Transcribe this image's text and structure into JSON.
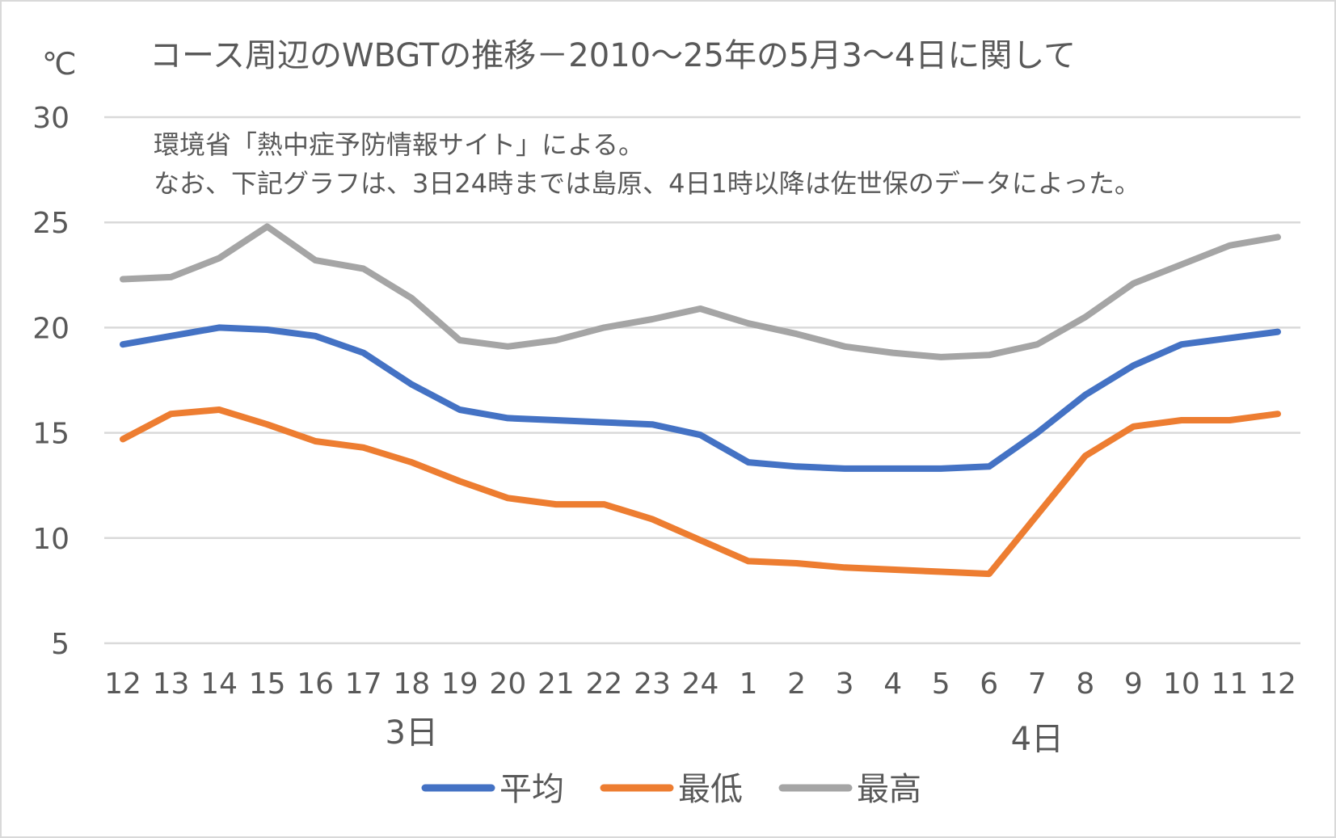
{
  "chart_data": {
    "type": "line",
    "title": "コース周辺のWBGTの推移－2010～25年の5月3～4日に関して",
    "ylabel": "℃",
    "annotation": [
      "環境省「熱中症予防情報サイト」による。",
      "なお、下記グラフは、3日24時までは島原、4日1時以降は佐世保のデータによった。"
    ],
    "categories": [
      "12",
      "13",
      "14",
      "15",
      "16",
      "17",
      "18",
      "19",
      "20",
      "21",
      "22",
      "23",
      "24",
      "1",
      "2",
      "3",
      "4",
      "5",
      "6",
      "7",
      "8",
      "9",
      "10",
      "11",
      "12"
    ],
    "group_labels": [
      {
        "label": "3日",
        "category_index": 6
      },
      {
        "label": "4日",
        "category_index": 19
      }
    ],
    "ylim": [
      5,
      30
    ],
    "yticks": [
      5,
      10,
      15,
      20,
      25,
      30
    ],
    "grid": true,
    "legend": "bottom",
    "series": [
      {
        "name": "平均",
        "color": "#4472C4",
        "values": [
          19.2,
          19.6,
          20.0,
          19.9,
          19.6,
          18.8,
          17.3,
          16.1,
          15.7,
          15.6,
          15.5,
          15.4,
          14.9,
          13.6,
          13.4,
          13.3,
          13.3,
          13.3,
          13.4,
          15.0,
          16.8,
          18.2,
          19.2,
          19.5,
          19.8
        ]
      },
      {
        "name": "最低",
        "color": "#ED7D31",
        "values": [
          14.7,
          15.9,
          16.1,
          15.4,
          14.6,
          14.3,
          13.6,
          12.7,
          11.9,
          11.6,
          11.6,
          10.9,
          9.9,
          8.9,
          8.8,
          8.6,
          8.5,
          8.4,
          8.3,
          11.1,
          13.9,
          15.3,
          15.6,
          15.6,
          15.9
        ]
      },
      {
        "name": "最高",
        "color": "#A5A5A5",
        "values": [
          22.3,
          22.4,
          23.3,
          24.8,
          23.2,
          22.8,
          21.4,
          19.4,
          19.1,
          19.4,
          20.0,
          20.4,
          20.9,
          20.2,
          19.7,
          19.1,
          18.8,
          18.6,
          18.7,
          19.2,
          20.5,
          22.1,
          23.0,
          23.9,
          24.3
        ]
      }
    ]
  }
}
